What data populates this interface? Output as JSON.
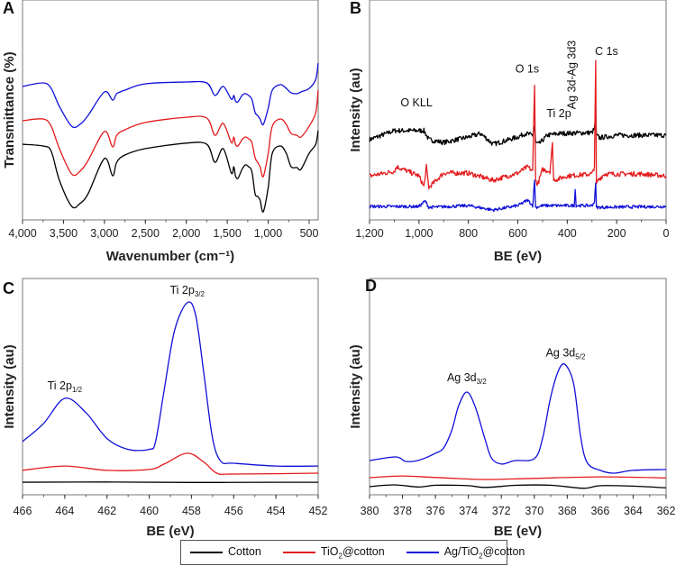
{
  "legend": [
    {
      "label_pre": "Cotton",
      "label_sub": "",
      "label_post": "",
      "color": "#000000"
    },
    {
      "label_pre": "TiO",
      "label_sub": "2",
      "label_post": "@cotton",
      "color": "#e41a1c"
    },
    {
      "label_pre": "Ag/TiO",
      "label_sub": "2",
      "label_post": "@cotton",
      "color": "#1010d8"
    }
  ],
  "chart_data": [
    {
      "panel": "A",
      "type": "line",
      "xlabel": "Wavenumber (cm⁻¹)",
      "ylabel": "Transmittance (%)",
      "xlim": [
        4000,
        390
      ],
      "ylim": [
        0,
        100
      ],
      "xticks": [
        4000,
        3500,
        3000,
        2500,
        2000,
        1500,
        1000,
        500
      ],
      "xtick_labels": [
        "4,000",
        "3,500",
        "3,000",
        "2,500",
        "2,000",
        "1,500",
        "1,000",
        "500"
      ],
      "minor_step": 250,
      "x": [
        4000,
        3750,
        3650,
        3550,
        3400,
        3300,
        3200,
        3000,
        2900,
        2850,
        2750,
        2500,
        2000,
        1750,
        1650,
        1550,
        1450,
        1420,
        1400,
        1370,
        1320,
        1280,
        1240,
        1200,
        1160,
        1130,
        1100,
        1060,
        1000,
        950,
        850,
        780,
        720,
        650,
        600,
        500,
        420,
        390
      ],
      "series": [
        {
          "name": "Cotton",
          "values": [
            34.4,
            33.6,
            31.2,
            18,
            6.2,
            7.4,
            11.9,
            27.9,
            20.1,
            26.2,
            29.5,
            32.4,
            34.9,
            34.4,
            26.2,
            32.4,
            21.3,
            24.2,
            20.1,
            18.9,
            23,
            25,
            24.2,
            22.1,
            11.9,
            10.7,
            9,
            3.7,
            14.8,
            30.3,
            33.6,
            30.3,
            24.2,
            23.8,
            23,
            30.3,
            34.4,
            40.6
          ]
        },
        {
          "name": "TiO2@cotton",
          "values": [
            45.1,
            45.9,
            42.6,
            32.4,
            20.9,
            22.1,
            27,
            40.2,
            33.2,
            38.5,
            41,
            44.3,
            46.7,
            46.3,
            38.5,
            43.9,
            35.2,
            37.7,
            34.4,
            33.6,
            36.5,
            37.7,
            36.9,
            35.2,
            28.3,
            26.2,
            24.2,
            19.7,
            30.3,
            42.6,
            45.9,
            43.4,
            39.3,
            38.5,
            37.7,
            42.6,
            48.8,
            59
          ]
        },
        {
          "name": "Ag/TiO2@cotton",
          "values": [
            60.7,
            62.3,
            59.8,
            51.6,
            42.6,
            43.4,
            47.5,
            58.2,
            54.5,
            57.4,
            59,
            61.9,
            62.7,
            62.3,
            56.6,
            60.7,
            54.9,
            56.6,
            54.1,
            53.7,
            56.6,
            57.4,
            56.6,
            54.9,
            48.8,
            47.5,
            45.9,
            43.4,
            50.8,
            59,
            61.5,
            59.8,
            57.8,
            57.4,
            58.2,
            59.8,
            63.9,
            71.3
          ]
        }
      ],
      "annotations": []
    },
    {
      "panel": "B",
      "type": "line",
      "xlabel": "BE (eV)",
      "ylabel": "Intensity (au)",
      "xlim": [
        1200,
        0
      ],
      "ylim": [
        0,
        100
      ],
      "xticks": [
        1200,
        1000,
        800,
        600,
        400,
        200,
        0
      ],
      "xtick_labels": [
        "1,200",
        "1,000",
        "800",
        "600",
        "400",
        "200",
        "0"
      ],
      "minor_step": 100,
      "series": [
        {
          "name": "Cotton",
          "x": [
            1200,
            1100,
            980,
            960,
            900,
            800,
            750,
            700,
            600,
            570,
            540,
            532,
            528,
            515,
            480,
            430,
            300,
            290,
            285,
            282,
            270,
            200,
            0
          ],
          "values": [
            36.5,
            40.6,
            40.6,
            36.5,
            35.2,
            37.7,
            39.3,
            34.4,
            37.7,
            39.3,
            38.5,
            42.6,
            35.2,
            34.4,
            38.5,
            39.3,
            39.7,
            41.4,
            47.9,
            38.5,
            37.3,
            38.5,
            38.5
          ]
        },
        {
          "name": "TiO2@cotton",
          "x": [
            1200,
            1100,
            1090,
            1000,
            980,
            970,
            960,
            900,
            800,
            700,
            600,
            560,
            540,
            532,
            528,
            520,
            500,
            470,
            460,
            455,
            400,
            300,
            290,
            285,
            282,
            275,
            250,
            100,
            0
          ],
          "values": [
            20,
            22.1,
            24.2,
            20,
            15.1,
            24.2,
            14.7,
            21.3,
            21.3,
            18,
            21.3,
            24.2,
            22.1,
            62.3,
            18,
            16,
            22.9,
            22.1,
            34.4,
            18,
            20,
            20.9,
            24.2,
            72.5,
            16,
            18,
            20.9,
            20.9,
            20
          ]
        },
        {
          "name": "Ag/TiO2@cotton",
          "x": [
            1200,
            1000,
            975,
            960,
            800,
            700,
            600,
            560,
            540,
            532,
            528,
            500,
            400,
            372,
            368,
            364,
            300,
            290,
            285,
            282,
            0
          ],
          "values": [
            6.1,
            6.1,
            8.6,
            5.7,
            6.5,
            4.5,
            6.5,
            9,
            6.5,
            18,
            5.7,
            6.5,
            6.5,
            6.5,
            13.9,
            6.5,
            6.5,
            8.2,
            16.8,
            5.7,
            6.1
          ]
        }
      ],
      "annotations": [
        {
          "text": "O KLL",
          "sub": "",
          "x": 1010,
          "y": 51.6,
          "rotate": false
        },
        {
          "text": "O 1s",
          "sub": "",
          "x": 562,
          "y": 67,
          "rotate": false
        },
        {
          "text": "Ti 2p",
          "sub": "",
          "x": 434,
          "y": 46.7,
          "rotate": false
        },
        {
          "text": "Ag 3d-Ag 3d3",
          "sub": "",
          "x": 366,
          "y": 66,
          "rotate": true
        },
        {
          "text": "C 1s",
          "sub": "",
          "x": 241,
          "y": 75,
          "rotate": false
        }
      ]
    },
    {
      "panel": "C",
      "type": "line",
      "xlabel": "BE (eV)",
      "ylabel": "Intensity (au)",
      "xlim": [
        466,
        452
      ],
      "ylim": [
        0,
        100
      ],
      "xticks": [
        466,
        464,
        462,
        460,
        458,
        456,
        454,
        452
      ],
      "xtick_labels": [
        "466",
        "464",
        "462",
        "460",
        "458",
        "456",
        "454",
        "452"
      ],
      "minor_step": 1,
      "series": [
        {
          "name": "Cotton",
          "x": [
            466,
            462,
            458,
            454,
            452
          ],
          "values": [
            5.8,
            5.9,
            5.7,
            5.8,
            5.8
          ]
        },
        {
          "name": "TiO2@cotton",
          "x": [
            466,
            464,
            462,
            460,
            459.3,
            458.2,
            457.4,
            456.8,
            456,
            452
          ],
          "values": [
            11.3,
            13.3,
            11.3,
            11.7,
            14.2,
            19.2,
            15,
            10,
            9.6,
            10
          ]
        },
        {
          "name": "Ag/TiO2@cotton",
          "x": [
            466,
            465,
            464,
            463,
            462,
            461,
            460,
            459.7,
            459.3,
            458.8,
            458.2,
            457.8,
            457.4,
            457,
            456.6,
            456,
            454,
            452
          ],
          "values": [
            24.6,
            33,
            44.6,
            38,
            26,
            21,
            21,
            24.6,
            48,
            76,
            88.8,
            83,
            55,
            26,
            15.4,
            14.6,
            13.3,
            13.3
          ]
        }
      ],
      "annotations": [
        {
          "text": "Ti 2p",
          "sub": "1/2",
          "x": 464,
          "y": 48.7,
          "rotate": false
        },
        {
          "text": "Ti 2p",
          "sub": "3/2",
          "x": 458.2,
          "y": 93,
          "rotate": false
        }
      ]
    },
    {
      "panel": "D",
      "type": "line",
      "xlabel": "BE (eV)",
      "ylabel": "Intensity (au)",
      "xlim": [
        380,
        362
      ],
      "ylim": [
        0,
        100
      ],
      "xticks": [
        380,
        378,
        376,
        374,
        372,
        370,
        368,
        366,
        364,
        362
      ],
      "xtick_labels": [
        "380",
        "378",
        "376",
        "374",
        "372",
        "370",
        "368",
        "366",
        "364",
        "362"
      ],
      "minor_step": 1,
      "series": [
        {
          "name": "Cotton",
          "x": [
            380,
            378.5,
            377,
            376,
            374,
            373,
            371,
            369,
            367,
            366,
            364,
            362
          ],
          "values": [
            3.8,
            4.6,
            3.6,
            4.4,
            4.2,
            3.4,
            4.4,
            4.4,
            3,
            4.2,
            4,
            3.2
          ]
        },
        {
          "name": "TiO2@cotton",
          "x": [
            380,
            378,
            376,
            373,
            370,
            366,
            362
          ],
          "values": [
            7.9,
            8.7,
            8,
            7.1,
            7.6,
            8.3,
            7.8
          ]
        },
        {
          "name": "Ag/TiO2@cotton",
          "x": [
            380,
            378.4,
            377.8,
            377,
            376,
            375.5,
            375,
            374.6,
            374.1,
            373.6,
            373,
            372.6,
            372,
            371.2,
            370,
            369.5,
            369,
            368.5,
            368.1,
            367.6,
            367.2,
            366.8,
            366,
            365.2,
            364,
            362
          ],
          "values": [
            15.8,
            17.5,
            15.4,
            16,
            19.2,
            21.7,
            30,
            41,
            47.5,
            41,
            26,
            17,
            14.2,
            15.8,
            16.7,
            26,
            45.4,
            58,
            60,
            51,
            27.5,
            15,
            11.3,
            10,
            11.3,
            11.7
          ]
        }
      ],
      "annotations": [
        {
          "text": "Ag 3d",
          "sub": "3/2",
          "x": 374.1,
          "y": 52.5,
          "rotate": false
        },
        {
          "text": "Ag 3d",
          "sub": "5/2",
          "x": 368.1,
          "y": 64,
          "rotate": false
        }
      ]
    }
  ]
}
